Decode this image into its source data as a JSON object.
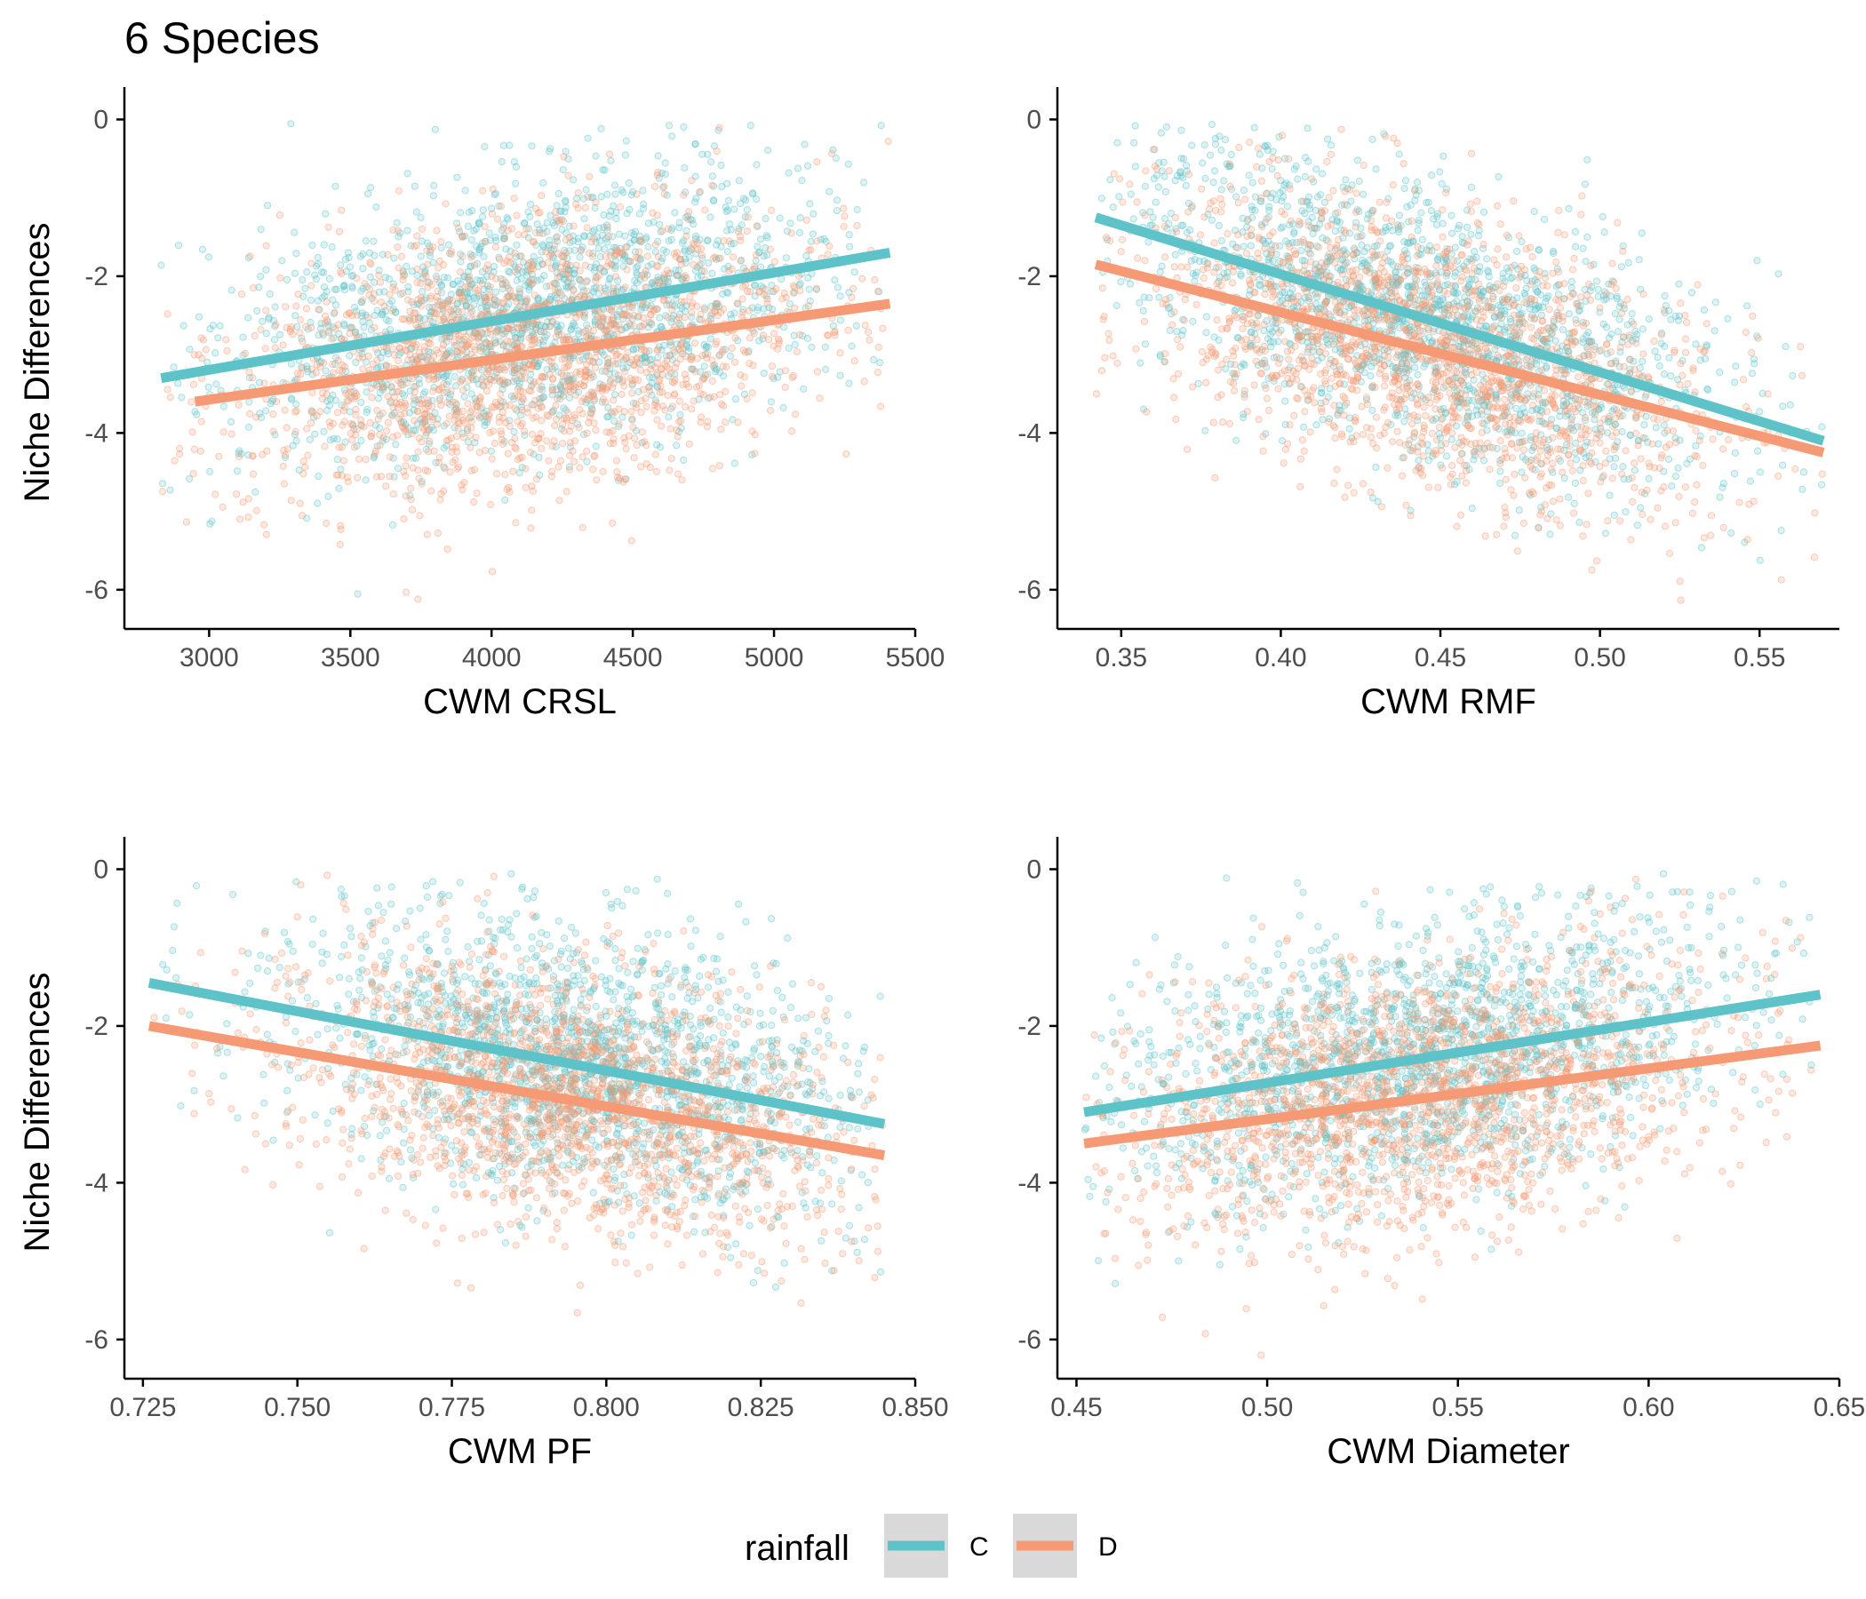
{
  "title": "6 Species",
  "colors": {
    "C": "#5ec2c9",
    "D": "#f59a74",
    "axis": "#000000",
    "tick_text": "#4d4d4d",
    "legend_key_bg": "#d9d9d9"
  },
  "legend": {
    "title": "rainfall",
    "placement": "bottom",
    "items": [
      {
        "key": "C",
        "label": "C"
      },
      {
        "key": "D",
        "label": "D"
      }
    ]
  },
  "chart_data": [
    {
      "type": "scatter",
      "xlabel": "CWM CRSL",
      "ylabel": "Niche Differences",
      "xlim": [
        2700,
        5500
      ],
      "ylim": [
        -6.5,
        0.3
      ],
      "x_ticks": [
        3000,
        3500,
        4000,
        4500,
        5000,
        5500
      ],
      "x_tick_labels": [
        "3000",
        "3500",
        "4000",
        "4500",
        "5000",
        "5500"
      ],
      "y_ticks": [
        0,
        -2,
        -4,
        -6
      ],
      "y_tick_labels": [
        "0",
        "-2",
        "-4",
        "-6"
      ],
      "cloud": {
        "x_center": 4150,
        "x_sd": 520,
        "x_range": [
          2830,
          5410
        ],
        "y_sd": 0.85
      },
      "series": [
        {
          "name": "C",
          "fit_x": [
            2830,
            5410
          ],
          "fit_y": [
            -3.3,
            -1.7
          ]
        },
        {
          "name": "D",
          "fit_x": [
            2950,
            5410
          ],
          "fit_y": [
            -3.6,
            -2.35
          ]
        }
      ]
    },
    {
      "type": "scatter",
      "xlabel": "CWM RMF",
      "ylabel": "",
      "xlim": [
        0.33,
        0.575
      ],
      "ylim": [
        -6.5,
        0.3
      ],
      "x_ticks": [
        0.35,
        0.4,
        0.45,
        0.5,
        0.55
      ],
      "x_tick_labels": [
        "0.35",
        "0.40",
        "0.45",
        "0.50",
        "0.55"
      ],
      "y_ticks": [
        0,
        -2,
        -4,
        -6
      ],
      "y_tick_labels": [
        "0",
        "-2",
        "-4",
        "-6"
      ],
      "cloud": {
        "x_center": 0.445,
        "x_sd": 0.045,
        "x_range": [
          0.342,
          0.57
        ],
        "y_sd": 0.85
      },
      "series": [
        {
          "name": "C",
          "fit_x": [
            0.342,
            0.57
          ],
          "fit_y": [
            -1.25,
            -4.1
          ]
        },
        {
          "name": "D",
          "fit_x": [
            0.342,
            0.57
          ],
          "fit_y": [
            -1.85,
            -4.25
          ]
        }
      ]
    },
    {
      "type": "scatter",
      "xlabel": "CWM PF",
      "ylabel": "Niche Differences",
      "xlim": [
        0.722,
        0.85
      ],
      "ylim": [
        -6.5,
        0.3
      ],
      "x_ticks": [
        0.725,
        0.75,
        0.775,
        0.8,
        0.825,
        0.85
      ],
      "x_tick_labels": [
        "0.725",
        "0.750",
        "0.775",
        "0.800",
        "0.825",
        "0.850"
      ],
      "y_ticks": [
        0,
        -2,
        -4,
        -6
      ],
      "y_tick_labels": [
        "0",
        "-2",
        "-4",
        "-6"
      ],
      "cloud": {
        "x_center": 0.795,
        "x_sd": 0.022,
        "x_range": [
          0.726,
          0.845
        ],
        "y_sd": 0.85
      },
      "series": [
        {
          "name": "C",
          "fit_x": [
            0.726,
            0.845
          ],
          "fit_y": [
            -1.45,
            -3.25
          ]
        },
        {
          "name": "D",
          "fit_x": [
            0.726,
            0.845
          ],
          "fit_y": [
            -2.0,
            -3.65
          ]
        }
      ]
    },
    {
      "type": "scatter",
      "xlabel": "CWM Diameter",
      "ylabel": "",
      "xlim": [
        0.445,
        0.65
      ],
      "ylim": [
        -6.5,
        0.3
      ],
      "x_ticks": [
        0.45,
        0.5,
        0.55,
        0.6,
        0.65
      ],
      "x_tick_labels": [
        "0.45",
        "0.50",
        "0.55",
        "0.60",
        "0.65"
      ],
      "y_ticks": [
        0,
        -2,
        -4,
        -6
      ],
      "y_tick_labels": [
        "0",
        "-2",
        "-4",
        "-6"
      ],
      "cloud": {
        "x_center": 0.54,
        "x_sd": 0.04,
        "x_range": [
          0.452,
          0.645
        ],
        "y_sd": 0.85
      },
      "series": [
        {
          "name": "C",
          "fit_x": [
            0.452,
            0.645
          ],
          "fit_y": [
            -3.1,
            -1.6
          ]
        },
        {
          "name": "D",
          "fit_x": [
            0.452,
            0.645
          ],
          "fit_y": [
            -3.5,
            -2.25
          ]
        }
      ]
    }
  ]
}
